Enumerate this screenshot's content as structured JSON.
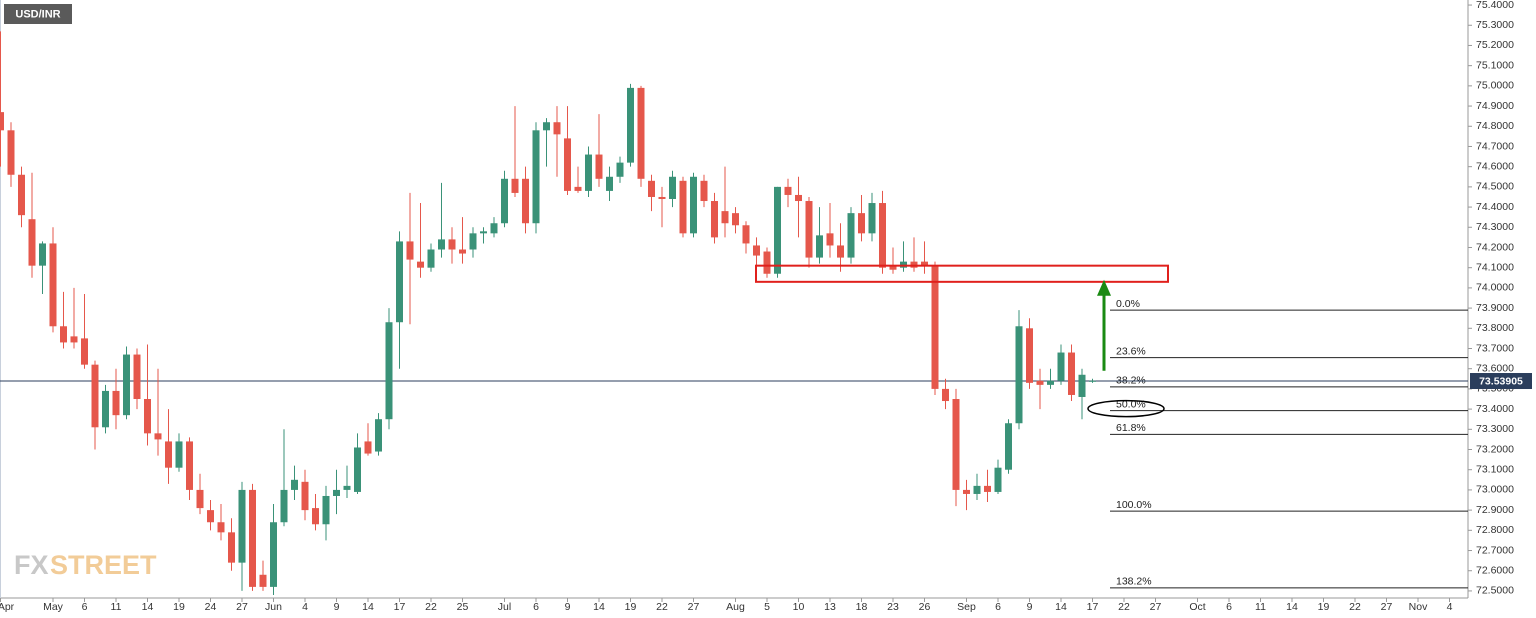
{
  "chart_data": {
    "type": "candlestick",
    "title": "USD/INR",
    "watermark": [
      "FX",
      "STREET"
    ],
    "up_color": "#3a9278",
    "down_color": "#e5574b",
    "categories": [
      "Apr",
      null,
      null,
      null,
      null,
      "May",
      null,
      null,
      "6",
      null,
      null,
      "11",
      null,
      null,
      "14",
      null,
      null,
      "19",
      null,
      null,
      "24",
      null,
      null,
      "27",
      null,
      null,
      "Jun",
      null,
      null,
      "4",
      null,
      null,
      "9",
      null,
      null,
      "14",
      null,
      null,
      "17",
      null,
      null,
      "22",
      null,
      null,
      "25",
      null,
      null,
      null,
      "Jul",
      null,
      null,
      "6",
      null,
      null,
      "9",
      null,
      null,
      "14",
      null,
      null,
      "19",
      null,
      null,
      "22",
      null,
      null,
      "27",
      null,
      null,
      null,
      "Aug",
      null,
      null,
      "5",
      null,
      null,
      "10",
      null,
      null,
      "13",
      null,
      null,
      "18",
      null,
      null,
      "23",
      null,
      null,
      "26",
      null,
      null,
      null,
      "Sep",
      null,
      null,
      "6",
      null,
      null,
      "9",
      null,
      null,
      "14",
      null,
      null,
      "17",
      null,
      null,
      "22",
      null,
      null,
      "27",
      null,
      null,
      null,
      "Oct",
      null,
      null,
      "6",
      null,
      null,
      "11",
      null,
      null,
      "14",
      null,
      null,
      "19",
      null,
      null,
      "22",
      null,
      null,
      "27",
      null,
      null,
      "Nov",
      null,
      null,
      "4",
      null
    ],
    "open": [
      74.87,
      74.78,
      74.56,
      74.34,
      74.11,
      74.22,
      73.81,
      73.76,
      73.75,
      73.62,
      73.31,
      73.49,
      73.37,
      73.67,
      73.45,
      73.28,
      73.24,
      73.11,
      73.24,
      73.0,
      72.9,
      72.84,
      72.79,
      72.64,
      73.0,
      72.58,
      72.52,
      72.84,
      73.0,
      73.04,
      72.91,
      72.83,
      72.97,
      73.0,
      72.99,
      73.24,
      73.19,
      73.35,
      73.83,
      74.23,
      74.13,
      74.1,
      74.19,
      74.24,
      74.19,
      74.19,
      74.27,
      74.27,
      74.32,
      74.54,
      74.54,
      74.32,
      74.78,
      74.82,
      74.74,
      74.5,
      74.48,
      74.66,
      74.48,
      74.55,
      74.62,
      74.99,
      74.53,
      74.45,
      74.44,
      74.53,
      74.27,
      74.53,
      74.43,
      74.38,
      74.37,
      74.31,
      74.21,
      74.18,
      74.07,
      74.5,
      74.46,
      74.43,
      74.15,
      74.27,
      74.21,
      74.15,
      74.37,
      74.27,
      74.42,
      74.11,
      74.1,
      74.13,
      74.13,
      74.11,
      73.5,
      73.45,
      73.0,
      72.98,
      73.02,
      72.99,
      73.1,
      73.33,
      73.8,
      73.54,
      73.52,
      73.54,
      73.68,
      73.46,
      73.54,
      null,
      null,
      null,
      null,
      null,
      null,
      null,
      null,
      null,
      null,
      null,
      null,
      null,
      null,
      null,
      null,
      null,
      null,
      null,
      null,
      null,
      null,
      null,
      null,
      null,
      null,
      null,
      null,
      null,
      null,
      null,
      null,
      null,
      null,
      null
    ],
    "high": [
      75.27,
      74.82,
      74.6,
      74.57,
      74.23,
      74.3,
      73.98,
      74.0,
      73.97,
      73.64,
      73.52,
      73.6,
      73.71,
      73.7,
      73.72,
      73.6,
      73.4,
      73.28,
      73.26,
      73.08,
      72.95,
      72.93,
      72.86,
      73.04,
      73.03,
      72.65,
      72.93,
      73.3,
      73.12,
      73.1,
      72.98,
      73.02,
      73.1,
      73.12,
      73.28,
      73.33,
      73.38,
      73.9,
      74.28,
      74.47,
      74.42,
      74.22,
      74.52,
      74.3,
      74.35,
      74.3,
      74.3,
      74.35,
      74.58,
      74.9,
      74.6,
      74.82,
      74.84,
      74.9,
      74.9,
      74.6,
      74.7,
      74.86,
      74.6,
      74.65,
      75.01,
      75.0,
      74.56,
      74.5,
      74.58,
      74.55,
      74.57,
      74.56,
      74.47,
      74.6,
      74.4,
      74.33,
      74.25,
      74.2,
      74.5,
      74.54,
      74.55,
      74.45,
      74.4,
      74.42,
      74.32,
      74.4,
      74.46,
      74.47,
      74.48,
      74.2,
      74.23,
      74.25,
      74.23,
      74.13,
      73.55,
      73.5,
      73.05,
      73.08,
      73.1,
      73.15,
      73.35,
      73.89,
      73.85,
      73.6,
      73.6,
      73.72,
      73.72,
      73.6,
      73.55,
      null,
      null,
      null,
      null,
      null,
      null,
      null,
      null,
      null,
      null,
      null,
      null,
      null,
      null,
      null,
      null,
      null,
      null,
      null,
      null,
      null,
      null,
      null,
      null,
      null,
      null,
      null,
      null,
      null,
      null,
      null,
      null,
      null,
      null,
      null
    ],
    "low": [
      74.6,
      74.5,
      74.3,
      74.05,
      73.97,
      73.78,
      73.7,
      73.7,
      73.6,
      73.2,
      73.28,
      73.3,
      73.35,
      73.4,
      73.22,
      73.17,
      73.03,
      73.09,
      72.95,
      72.88,
      72.8,
      72.75,
      72.6,
      72.5,
      72.5,
      72.5,
      72.48,
      72.82,
      72.95,
      72.85,
      72.8,
      72.75,
      72.88,
      72.96,
      72.98,
      73.17,
      73.17,
      73.3,
      73.6,
      73.82,
      74.05,
      74.08,
      74.15,
      74.12,
      74.12,
      74.15,
      74.22,
      74.25,
      74.3,
      74.45,
      74.27,
      74.27,
      74.6,
      74.55,
      74.46,
      74.47,
      74.45,
      74.5,
      74.43,
      74.52,
      74.6,
      74.5,
      74.38,
      74.3,
      74.4,
      74.25,
      74.25,
      74.4,
      74.22,
      74.25,
      74.27,
      74.17,
      74.1,
      74.05,
      74.05,
      74.4,
      74.25,
      74.1,
      74.12,
      74.15,
      74.08,
      74.12,
      74.23,
      74.23,
      74.07,
      74.07,
      74.08,
      74.08,
      74.07,
      73.47,
      73.4,
      72.92,
      72.9,
      72.95,
      72.94,
      72.98,
      73.08,
      73.3,
      73.5,
      73.4,
      73.5,
      73.52,
      73.44,
      73.35,
      73.53,
      null,
      null,
      null,
      null,
      null,
      null,
      null,
      null,
      null,
      null,
      null,
      null,
      null,
      null,
      null,
      null,
      null,
      null,
      null,
      null,
      null,
      null,
      null,
      null,
      null,
      null,
      null,
      null,
      null,
      null,
      null,
      null,
      null,
      null,
      null
    ],
    "close": [
      74.78,
      74.56,
      74.36,
      74.11,
      74.22,
      73.81,
      73.73,
      73.73,
      73.62,
      73.31,
      73.49,
      73.37,
      73.67,
      73.45,
      73.28,
      73.25,
      73.11,
      73.24,
      73.0,
      72.91,
      72.84,
      72.79,
      72.64,
      73.0,
      72.52,
      72.52,
      72.84,
      73.0,
      73.05,
      72.9,
      72.83,
      72.97,
      73.0,
      73.02,
      73.21,
      73.18,
      73.35,
      73.83,
      74.23,
      74.14,
      74.1,
      74.19,
      74.24,
      74.19,
      74.17,
      74.27,
      74.28,
      74.32,
      74.54,
      74.47,
      74.32,
      74.78,
      74.82,
      74.76,
      74.48,
      74.48,
      74.66,
      74.54,
      74.55,
      74.62,
      74.99,
      74.54,
      74.45,
      74.44,
      74.55,
      74.27,
      74.55,
      74.43,
      74.25,
      74.32,
      74.31,
      74.22,
      74.16,
      74.07,
      74.5,
      74.46,
      74.43,
      74.15,
      74.26,
      74.21,
      74.15,
      74.37,
      74.27,
      74.42,
      74.1,
      74.09,
      74.13,
      74.1,
      74.11,
      73.5,
      73.44,
      73.0,
      72.98,
      73.02,
      72.99,
      73.11,
      73.33,
      73.81,
      73.53,
      73.52,
      73.54,
      73.68,
      73.47,
      73.57,
      73.54,
      null,
      null,
      null,
      null,
      null,
      null,
      null,
      null,
      null,
      null,
      null,
      null,
      null,
      null,
      null,
      null,
      null,
      null,
      null,
      null,
      null,
      null,
      null,
      null,
      null,
      null,
      null,
      null,
      null,
      null,
      null,
      null,
      null,
      null,
      null
    ],
    "last_price": 73.53905,
    "last_price_color": "#2b3e5c",
    "ylim": [
      72.465,
      75.425
    ],
    "yticks": [
      {
        "value": 72.5,
        "label": "72.5000"
      },
      {
        "value": 72.6,
        "label": "72.6000"
      },
      {
        "value": 72.7,
        "label": "72.7000"
      },
      {
        "value": 72.8,
        "label": "72.8000"
      },
      {
        "value": 72.9,
        "label": "72.9000"
      },
      {
        "value": 73.0,
        "label": "73.0000"
      },
      {
        "value": 73.1,
        "label": "73.1000"
      },
      {
        "value": 73.2,
        "label": "73.2000"
      },
      {
        "value": 73.3,
        "label": "73.3000"
      },
      {
        "value": 73.4,
        "label": "73.4000"
      },
      {
        "value": 73.5,
        "label": "73.5000"
      },
      {
        "value": 73.6,
        "label": "73.6000"
      },
      {
        "value": 73.7,
        "label": "73.7000"
      },
      {
        "value": 73.8,
        "label": "73.8000"
      },
      {
        "value": 73.9,
        "label": "73.9000"
      },
      {
        "value": 74.0,
        "label": "74.0000"
      },
      {
        "value": 74.1,
        "label": "74.1000"
      },
      {
        "value": 74.2,
        "label": "74.2000"
      },
      {
        "value": 74.3,
        "label": "74.3000"
      },
      {
        "value": 74.4,
        "label": "74.4000"
      },
      {
        "value": 74.5,
        "label": "74.5000"
      },
      {
        "value": 74.6,
        "label": "74.6000"
      },
      {
        "value": 74.7,
        "label": "74.7000"
      },
      {
        "value": 74.8,
        "label": "74.8000"
      },
      {
        "value": 74.9,
        "label": "74.9000"
      },
      {
        "value": 75.0,
        "label": "75.0000"
      },
      {
        "value": 75.1,
        "label": "75.1000"
      },
      {
        "value": 75.2,
        "label": "75.2000"
      },
      {
        "value": 75.3,
        "label": "75.3000"
      },
      {
        "value": 75.4,
        "label": "75.4000"
      }
    ],
    "fib_levels": [
      {
        "label": "0.0%",
        "value": 73.89
      },
      {
        "label": "23.6%",
        "value": 73.655
      },
      {
        "label": "38.2%",
        "value": 73.51
      },
      {
        "label": "50.0%",
        "value": 73.3925
      },
      {
        "label": "61.8%",
        "value": 73.275
      },
      {
        "label": "100.0%",
        "value": 72.895
      },
      {
        "label": "138.2%",
        "value": 72.515
      }
    ],
    "zone": {
      "low": 74.03,
      "high": 74.11,
      "color": "#e0201c"
    },
    "arrow": {
      "from": 73.59,
      "to": 74.04,
      "color": "#1a8a12"
    },
    "highlight_level": 3
  }
}
